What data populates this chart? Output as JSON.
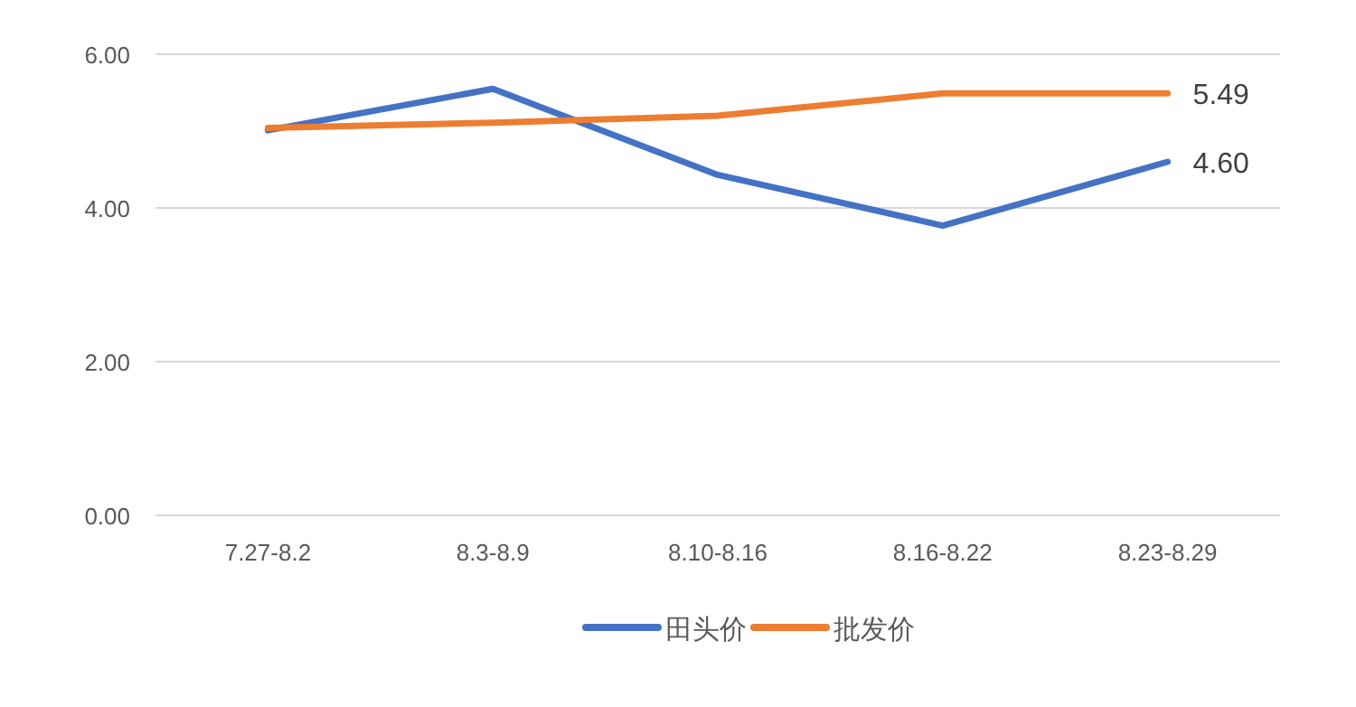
{
  "chart_data": {
    "type": "line",
    "categories": [
      "7.27-8.2",
      "8.3-8.9",
      "8.10-8.16",
      "8.16-8.22",
      "8.23-8.29"
    ],
    "series": [
      {
        "name": "田头价",
        "color": "#4472c4",
        "values": [
          5.01,
          5.55,
          4.43,
          3.77,
          4.6
        ],
        "value_labels": [
          null,
          null,
          null,
          null,
          "4.60"
        ]
      },
      {
        "name": "批发价",
        "color": "#ed7d31",
        "values": [
          5.04,
          5.11,
          5.2,
          5.49,
          5.49
        ],
        "value_labels": [
          null,
          null,
          null,
          null,
          "5.49"
        ]
      }
    ],
    "ylim": [
      0,
      6
    ],
    "yticks": [
      {
        "value": 0,
        "label": "0.00"
      },
      {
        "value": 2,
        "label": "2.00"
      },
      {
        "value": 4,
        "label": "4.00"
      },
      {
        "value": 6,
        "label": "6.00"
      }
    ],
    "grid": "y",
    "legend": "bottom",
    "marker": "none",
    "line_style": "solid"
  }
}
